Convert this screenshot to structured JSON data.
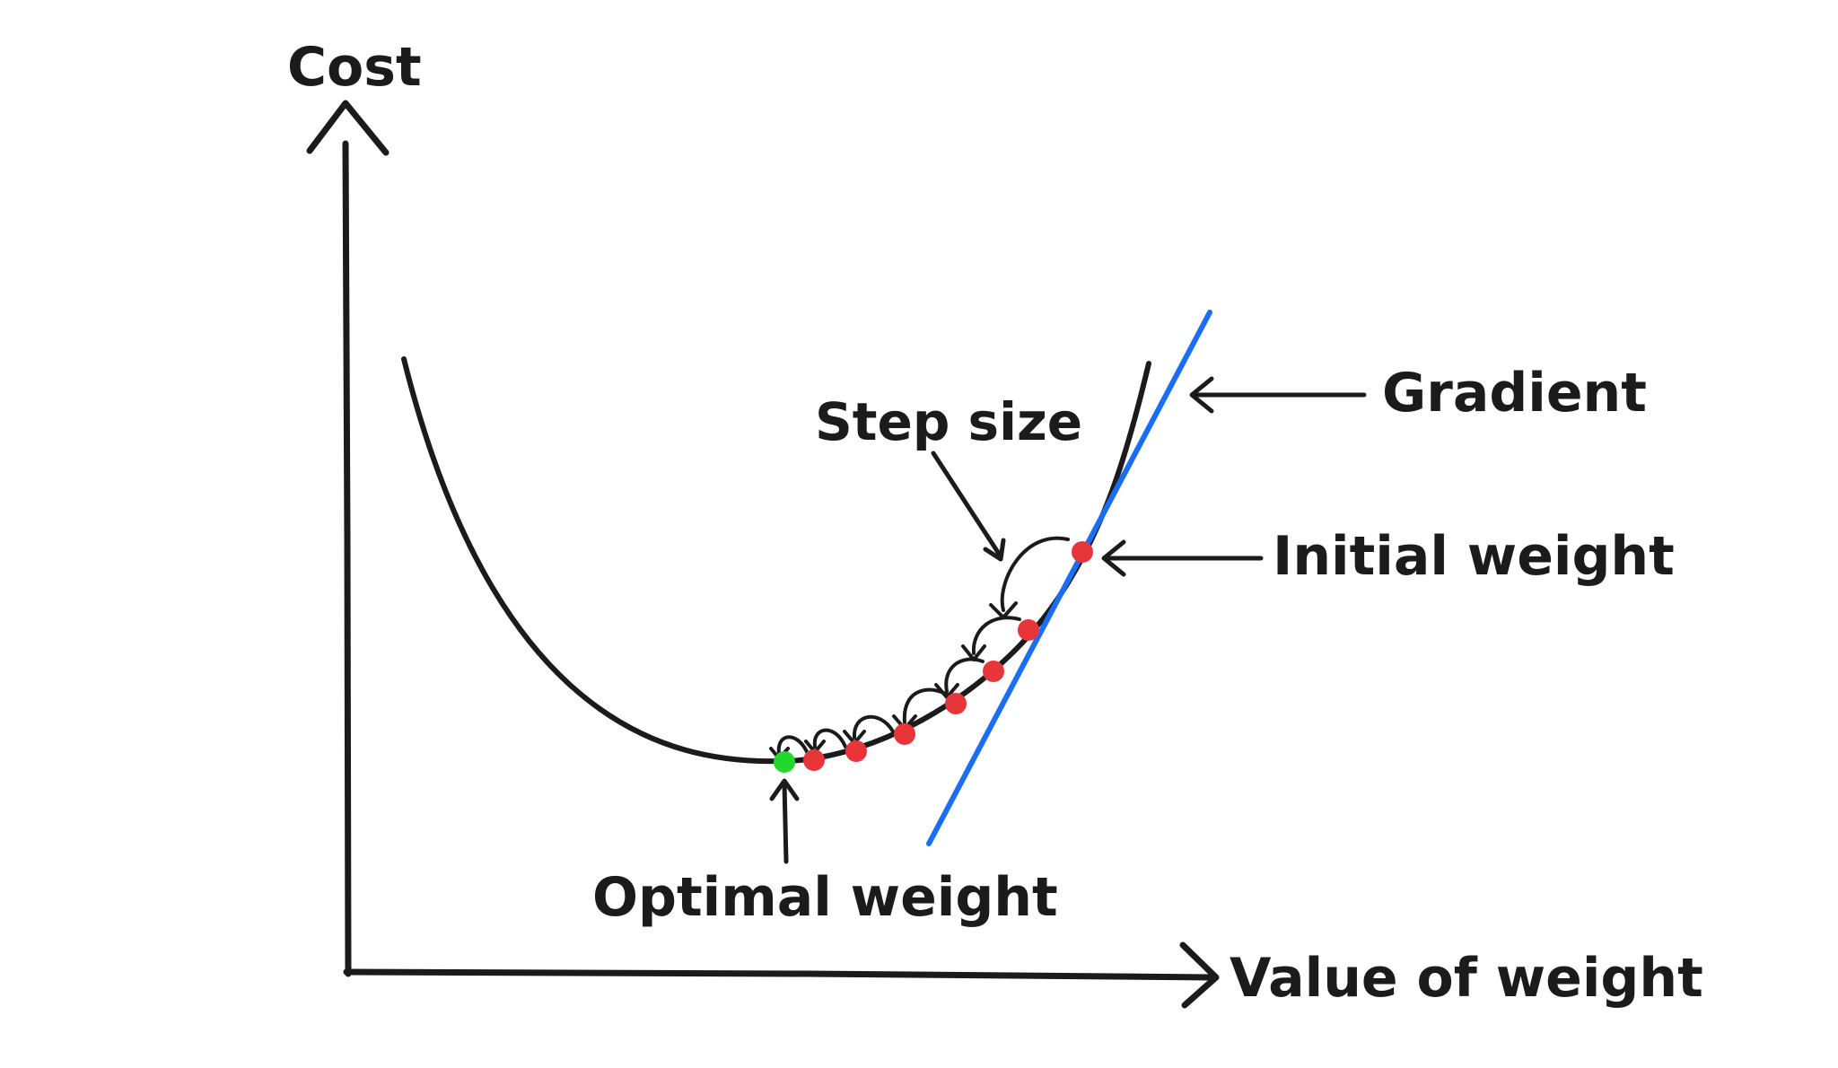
{
  "labels": {
    "y_axis": "Cost",
    "x_axis": "Value of weight",
    "step_size": "Step size",
    "gradient": "Gradient",
    "initial_weight": "Initial weight",
    "optimal_weight": "Optimal weight"
  },
  "colors": {
    "ink": "#1b1b1b",
    "gradient_line": "#1a6ef5",
    "step_point": "#e8353a",
    "optimal_point": "#22d82a",
    "background": "#ffffff"
  },
  "descent": {
    "step_points": 7,
    "optimal_points": 1
  }
}
